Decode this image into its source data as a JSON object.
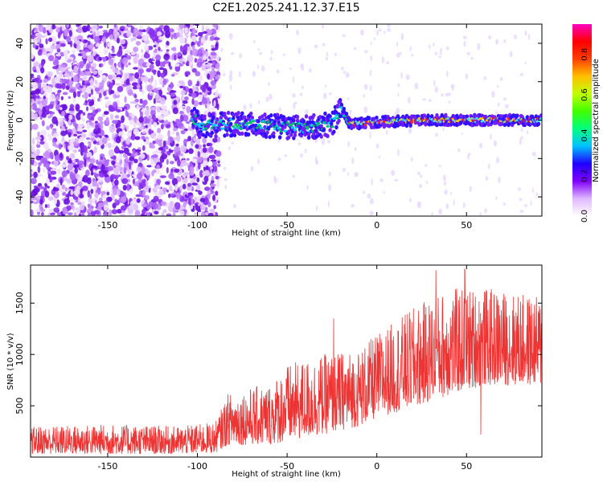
{
  "title": "C2E1.2025.241.12.37.E15",
  "chart_data": [
    {
      "type": "heatmap",
      "xlabel": "Height of straight line (km)",
      "ylabel": "Frequency (Hz)",
      "xlim": [
        -193,
        92
      ],
      "ylim": [
        -50,
        50
      ],
      "xticks": [
        -150,
        -100,
        -50,
        0,
        50
      ],
      "yticks": [
        -40,
        -20,
        0,
        20,
        40
      ],
      "noise_region_x": [
        -193,
        -88
      ],
      "signal_band": {
        "x_start": -103,
        "center_freq": [
          {
            "x": -100,
            "y": -3
          },
          {
            "x": -80,
            "y": -2
          },
          {
            "x": -60,
            "y": -3
          },
          {
            "x": -40,
            "y": -4
          },
          {
            "x": -25,
            "y": -2
          },
          {
            "x": -20,
            "y": 6
          },
          {
            "x": -15,
            "y": -2
          },
          {
            "x": 0,
            "y": -1
          },
          {
            "x": 30,
            "y": 0
          },
          {
            "x": 60,
            "y": 0
          },
          {
            "x": 90,
            "y": 0
          }
        ]
      },
      "colorbar": {
        "label": "Normalized spectral amplitude",
        "range": [
          0,
          0.95
        ],
        "ticks": [
          "0.0",
          "0.2",
          "0.4",
          "0.6",
          "0.8"
        ],
        "colors": [
          "#ffffff",
          "#e0b8ff",
          "#8000ff",
          "#2000ff",
          "#00c0ff",
          "#00ff80",
          "#40ff00",
          "#c0ff00",
          "#ffc000",
          "#ff4000",
          "#ff0000",
          "#ff00c0"
        ]
      }
    },
    {
      "type": "line",
      "xlabel": "Height of straight line (km)",
      "ylabel": "SNR (10 * v/v)",
      "xlim": [
        -193,
        92
      ],
      "ylim": [
        0,
        1870
      ],
      "xticks": [
        -150,
        -100,
        -50,
        0,
        50
      ],
      "yticks": [
        500,
        1000,
        1500
      ],
      "line_color": "#ee3333",
      "envelope": [
        {
          "x": -193,
          "low": 30,
          "high": 300
        },
        {
          "x": -150,
          "low": 30,
          "high": 320
        },
        {
          "x": -110,
          "low": 30,
          "high": 300
        },
        {
          "x": -90,
          "low": 40,
          "high": 340
        },
        {
          "x": -83,
          "low": 120,
          "high": 620
        },
        {
          "x": -60,
          "low": 120,
          "high": 720
        },
        {
          "x": -50,
          "low": 150,
          "high": 900
        },
        {
          "x": -30,
          "low": 220,
          "high": 1000
        },
        {
          "x": -10,
          "low": 300,
          "high": 1050
        },
        {
          "x": 0,
          "low": 380,
          "high": 1200
        },
        {
          "x": 20,
          "low": 480,
          "high": 1450
        },
        {
          "x": 40,
          "low": 600,
          "high": 1650
        },
        {
          "x": 60,
          "low": 700,
          "high": 1650
        },
        {
          "x": 92,
          "low": 700,
          "high": 1560
        }
      ],
      "spikes": [
        {
          "x": 33,
          "y": 1820
        },
        {
          "x": 49,
          "y": 1830
        },
        {
          "x": 58,
          "y": 220
        },
        {
          "x": -24,
          "y": 1350
        }
      ]
    }
  ]
}
